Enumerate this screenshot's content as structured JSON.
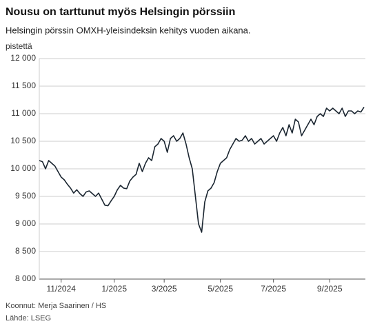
{
  "chart_data": {
    "type": "line",
    "title": "Nousu on tarttunut myös Helsingin pörssiin",
    "subtitle": "Helsingin pörssin OMXH-yleisindeksin kehitys vuoden aikana.",
    "ylabel": "pistettä",
    "notes": [
      "Koonnut: Merja Saarinen / HS",
      "Lähde: LSEG"
    ],
    "categories": [
      null,
      null,
      null,
      null,
      null,
      null,
      null,
      "11/2024",
      null,
      null,
      null,
      null,
      null,
      null,
      null,
      null,
      null,
      null,
      null,
      null,
      null,
      null,
      null,
      null,
      "1/2025",
      null,
      null,
      null,
      null,
      null,
      null,
      null,
      null,
      null,
      null,
      null,
      null,
      null,
      null,
      null,
      "3/2025",
      null,
      null,
      null,
      null,
      null,
      null,
      null,
      null,
      null,
      null,
      null,
      null,
      null,
      null,
      null,
      null,
      null,
      "5/2025",
      null,
      null,
      null,
      null,
      null,
      null,
      null,
      null,
      null,
      null,
      null,
      null,
      null,
      null,
      null,
      null,
      "7/2025",
      null,
      null,
      null,
      null,
      null,
      null,
      null,
      null,
      null,
      null,
      null,
      null,
      null,
      null,
      null,
      null,
      null,
      "9/2025",
      null,
      null,
      null,
      null,
      null,
      null,
      null,
      null,
      null,
      null,
      null
    ],
    "series": [
      {
        "name": "OMXH",
        "color": "#1a2530",
        "values": [
          10150,
          10130,
          10000,
          10150,
          10100,
          10050,
          9950,
          9850,
          9800,
          9720,
          9650,
          9560,
          9620,
          9550,
          9500,
          9580,
          9600,
          9550,
          9500,
          9560,
          9450,
          9340,
          9330,
          9420,
          9500,
          9620,
          9700,
          9650,
          9640,
          9780,
          9850,
          9900,
          10100,
          9950,
          10100,
          10200,
          10150,
          10400,
          10450,
          10550,
          10500,
          10300,
          10550,
          10600,
          10500,
          10550,
          10650,
          10450,
          10200,
          10000,
          9500,
          9000,
          8850,
          9400,
          9600,
          9650,
          9750,
          9950,
          10100,
          10150,
          10200,
          10350,
          10450,
          10550,
          10500,
          10520,
          10600,
          10500,
          10550,
          10450,
          10500,
          10550,
          10450,
          10500,
          10550,
          10600,
          10500,
          10650,
          10750,
          10600,
          10800,
          10650,
          10900,
          10850,
          10600,
          10700,
          10800,
          10900,
          10800,
          10950,
          11000,
          10950,
          11100,
          11050,
          11100,
          11050,
          11000,
          11100,
          10950,
          11050,
          11050,
          11000,
          11050,
          11030,
          11120
        ]
      }
    ],
    "ylim": [
      8000,
      12000
    ],
    "yticks": [
      {
        "value": 8000,
        "label": "8 000"
      },
      {
        "value": 8500,
        "label": "8 500"
      },
      {
        "value": 9000,
        "label": "9 000"
      },
      {
        "value": 9500,
        "label": "9 500"
      },
      {
        "value": 10000,
        "label": "10 000"
      },
      {
        "value": 10500,
        "label": "10 500"
      },
      {
        "value": 11000,
        "label": "11 000"
      },
      {
        "value": 11500,
        "label": "11 500"
      },
      {
        "value": 12000,
        "label": "12 000"
      }
    ],
    "grid": true
  }
}
